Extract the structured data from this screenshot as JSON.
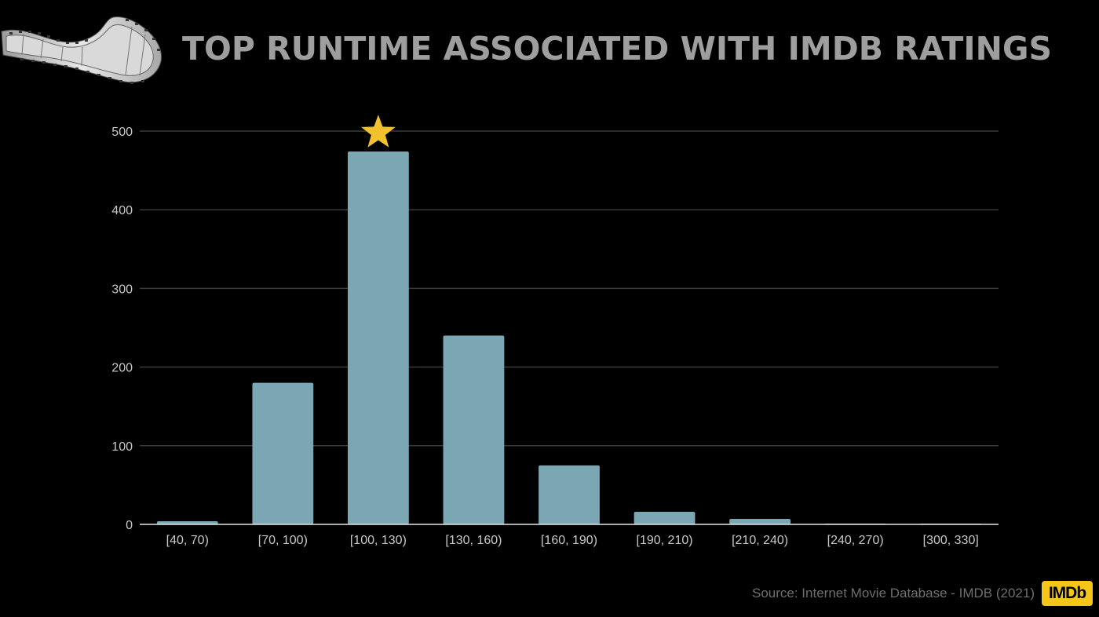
{
  "header": {
    "title": "TOP RUNTIME ASSOCIATED WITH IMDB RATINGS"
  },
  "footer": {
    "source": "Source: Internet Movie Database - IMDB (2021)",
    "badge": "IMDb"
  },
  "colors": {
    "bar": "#7aa7b3",
    "star": "#f2c12e",
    "grid": "#3a3a3a",
    "axis": "#e6e6e6",
    "title": "#9e9e9e"
  },
  "icons": {
    "logo": "film-strip-icon",
    "highlight": "star-icon"
  },
  "chart_data": {
    "type": "bar",
    "title": "TOP RUNTIME ASSOCIATED WITH IMDB RATINGS",
    "xlabel": "",
    "ylabel": "",
    "categories": [
      "[40, 70)",
      "[70, 100)",
      "[100, 130)",
      "[130, 160)",
      "[160, 190)",
      "[190, 210)",
      "[210, 240)",
      "[240, 270)",
      "[300, 330]"
    ],
    "values": [
      4,
      180,
      474,
      240,
      75,
      16,
      7,
      1,
      1
    ],
    "ylim": [
      0,
      500
    ],
    "yticks": [
      0,
      100,
      200,
      300,
      400,
      500
    ],
    "grid": true,
    "legend": "none",
    "highlight_category": "[100, 130)"
  }
}
